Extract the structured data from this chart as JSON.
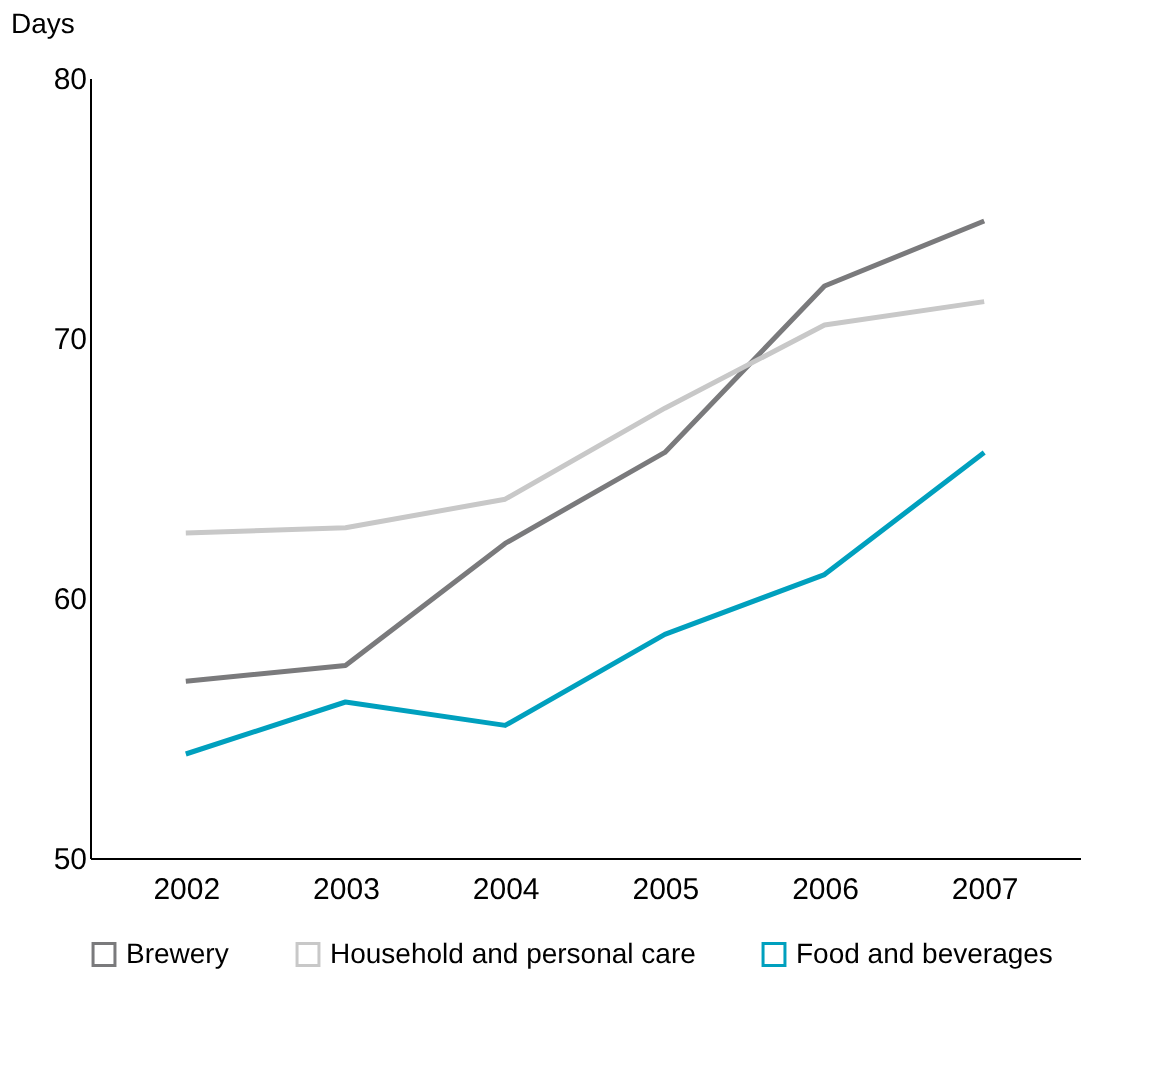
{
  "chart_data": {
    "type": "line",
    "ylabel": "Days",
    "categories": [
      "2002",
      "2003",
      "2004",
      "2005",
      "2006",
      "2007"
    ],
    "series": [
      {
        "name": "Brewery",
        "color": "#7a7a7c",
        "values": [
          56.8,
          57.4,
          62.1,
          65.6,
          72.0,
          74.5
        ]
      },
      {
        "name": "Household and personal care",
        "color": "#c8c8c8",
        "values": [
          62.5,
          62.7,
          63.8,
          67.3,
          70.5,
          71.4
        ]
      },
      {
        "name": "Food and beverages",
        "color": "#00a0be",
        "values": [
          54.0,
          56.0,
          55.1,
          58.6,
          60.9,
          65.6
        ]
      }
    ],
    "ylim": [
      50,
      80
    ],
    "yticks": [
      50,
      60,
      70,
      80
    ],
    "grid": false,
    "legend": "bottom",
    "marker": "none",
    "line_style": "solid"
  }
}
